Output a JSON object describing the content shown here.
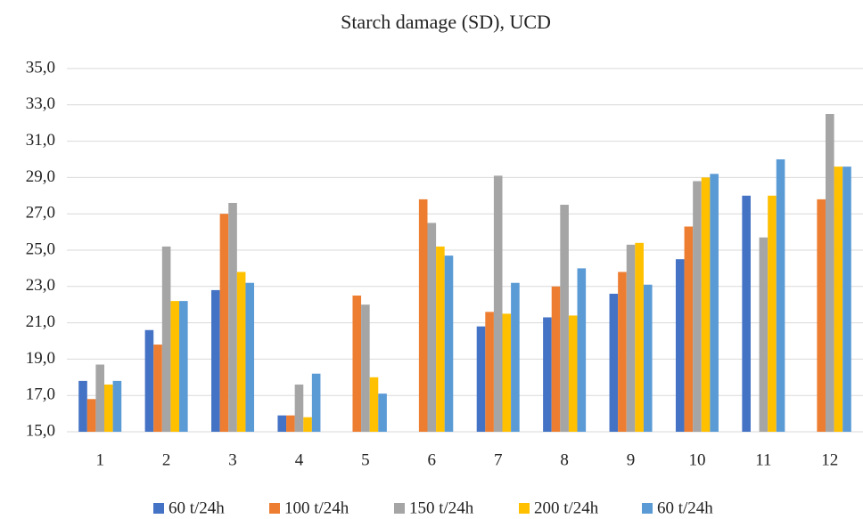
{
  "chart_data": {
    "type": "bar",
    "title": "Starch damage (SD), UCD",
    "categories": [
      "1",
      "2",
      "3",
      "4",
      "5",
      "6",
      "7",
      "8",
      "9",
      "10",
      "11",
      "12"
    ],
    "series": [
      {
        "name": "60 t/24h",
        "color": "#4472c4",
        "values": [
          17.8,
          20.6,
          22.8,
          15.9,
          null,
          null,
          20.8,
          21.3,
          22.6,
          24.5,
          28.0,
          null
        ]
      },
      {
        "name": "100 t/24h",
        "color": "#ed7d31",
        "values": [
          16.8,
          19.8,
          27.0,
          15.9,
          22.5,
          27.8,
          21.6,
          23.0,
          23.8,
          26.3,
          null,
          27.8
        ]
      },
      {
        "name": "150 t/24h",
        "color": "#a5a5a5",
        "values": [
          18.7,
          25.2,
          27.6,
          17.6,
          22.0,
          26.5,
          29.1,
          27.5,
          25.3,
          28.8,
          25.7,
          32.5
        ]
      },
      {
        "name": "200 t/24h",
        "color": "#ffc000",
        "values": [
          17.6,
          22.2,
          23.8,
          15.8,
          18.0,
          25.2,
          21.5,
          21.4,
          25.4,
          29.0,
          28.0,
          29.6
        ]
      },
      {
        "name": "60 t/24h",
        "color": "#5b9bd5",
        "values": [
          17.8,
          22.2,
          23.2,
          18.2,
          17.1,
          24.7,
          23.2,
          24.0,
          23.1,
          29.2,
          30.0,
          29.6
        ]
      }
    ],
    "ylim": [
      15,
      35
    ],
    "yticks": [
      {
        "value": 15,
        "label": "15,0"
      },
      {
        "value": 17,
        "label": "17,0"
      },
      {
        "value": 19,
        "label": "19,0"
      },
      {
        "value": 21,
        "label": "21,0"
      },
      {
        "value": 23,
        "label": "23,0"
      },
      {
        "value": 25,
        "label": "25,0"
      },
      {
        "value": 27,
        "label": "27,0"
      },
      {
        "value": 29,
        "label": "29,0"
      },
      {
        "value": 31,
        "label": "31,0"
      },
      {
        "value": 33,
        "label": "33,0"
      },
      {
        "value": 35,
        "label": "35,0"
      }
    ],
    "grid": true,
    "legend": "bottom"
  }
}
